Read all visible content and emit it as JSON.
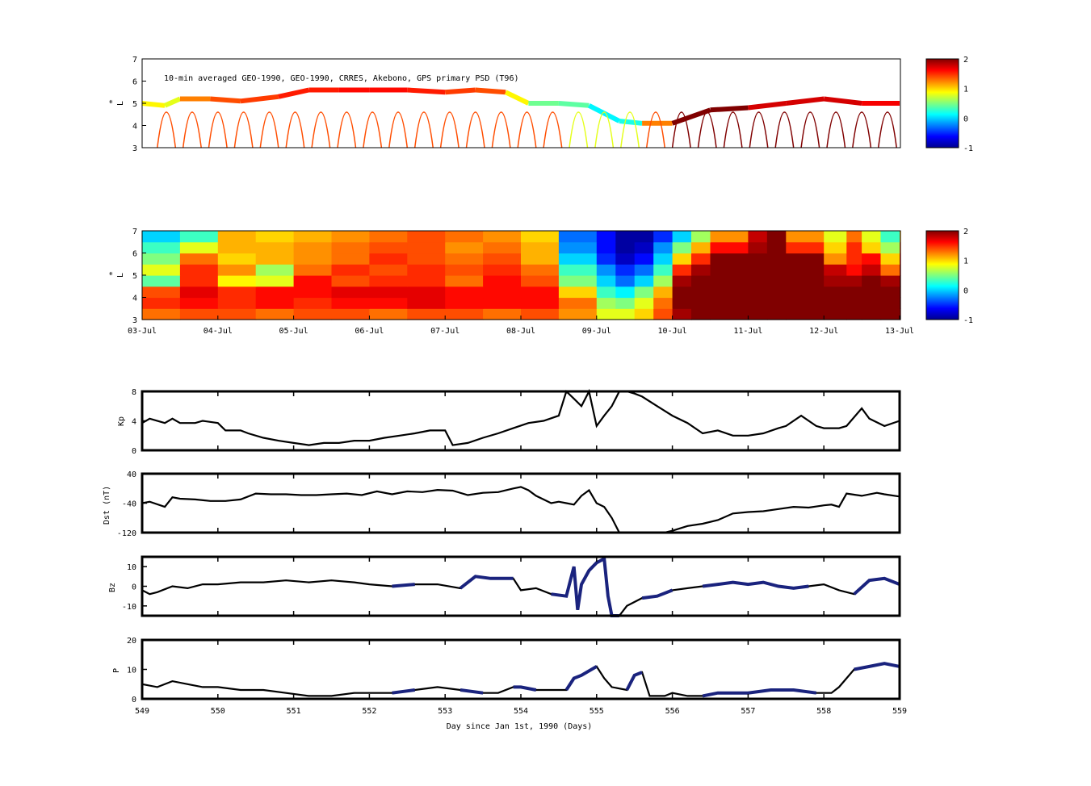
{
  "chart_data": [
    {
      "type": "heatmap",
      "title": "10-min averaged GEO-1990, GEO-1990, CRRES, Akebono, GPS  primary PSD (T96)",
      "ylabel": "L",
      "ylabel_sup": "*",
      "ylim": [
        3,
        7
      ],
      "yticks": [
        "3",
        "4",
        "5",
        "6",
        "7"
      ],
      "clim": [
        -1,
        2
      ],
      "cticks": [
        "-1",
        "0",
        "1",
        "2"
      ],
      "description_levels": {
        "geo_orbit_L": [
          [
            549.0,
            5.0,
            1.2
          ],
          [
            549.3,
            4.9,
            0.6
          ],
          [
            549.5,
            5.2,
            1.0
          ],
          [
            549.9,
            5.2,
            1.5
          ],
          [
            550.3,
            5.1,
            1.3
          ],
          [
            550.8,
            5.3,
            1.6
          ],
          [
            551.2,
            5.6,
            1.5
          ],
          [
            551.6,
            5.6,
            1.6
          ],
          [
            552.0,
            5.6,
            1.6
          ],
          [
            552.5,
            5.6,
            1.6
          ],
          [
            553.0,
            5.5,
            1.5
          ],
          [
            553.4,
            5.6,
            1.4
          ],
          [
            553.8,
            5.5,
            1.4
          ],
          [
            554.1,
            5.0,
            0.4
          ],
          [
            554.5,
            5.0,
            0.5
          ],
          [
            554.9,
            4.9,
            0.3
          ],
          [
            555.3,
            4.2,
            -0.1
          ],
          [
            555.6,
            4.1,
            0.5
          ],
          [
            556.0,
            4.1,
            2.0
          ],
          [
            556.5,
            4.7,
            2.0
          ],
          [
            557.0,
            4.8,
            2.0
          ],
          [
            557.5,
            5.0,
            1.5
          ],
          [
            558.0,
            5.2,
            2.0
          ],
          [
            558.5,
            5.0,
            1.5
          ],
          [
            559.0,
            5.0,
            1.8
          ]
        ]
      }
    },
    {
      "type": "heatmap",
      "ylabel": "L",
      "ylabel_sup": "*",
      "ylim": [
        3,
        7
      ],
      "yticks": [
        "3",
        "4",
        "5",
        "6",
        "7"
      ],
      "clim": [
        -1,
        2
      ],
      "cticks": [
        "-1",
        "0",
        "1",
        "2"
      ],
      "xtick_labels": [
        "03-Jul",
        "04-Jul",
        "05-Jul",
        "06-Jul",
        "07-Jul",
        "08-Jul",
        "09-Jul",
        "10-Jul",
        "11-Jul",
        "12-Jul",
        "13-Jul"
      ],
      "x": [
        549.0,
        549.5,
        550.0,
        550.5,
        551.0,
        551.5,
        552.0,
        552.5,
        553.0,
        553.5,
        554.0,
        554.5,
        555.0,
        555.25,
        555.5,
        555.75,
        556.0,
        556.25,
        556.5,
        557.0,
        557.25,
        557.5,
        558.0,
        558.3,
        558.5,
        558.75,
        559.0
      ],
      "y": [
        3.25,
        3.75,
        4.25,
        4.75,
        5.25,
        5.75,
        6.25,
        6.75
      ],
      "z": [
        [
          1.3,
          1.4,
          1.4,
          1.3,
          1.4,
          1.4,
          1.3,
          1.4,
          1.4,
          1.3,
          1.4,
          1.2,
          0.8,
          0.8,
          1.0,
          1.4,
          1.9,
          2.0,
          2.0,
          2.0,
          2.0,
          2.0,
          2.0,
          2.0,
          2.0,
          2.0,
          1.9
        ],
        [
          1.5,
          1.6,
          1.5,
          1.6,
          1.5,
          1.6,
          1.6,
          1.7,
          1.6,
          1.6,
          1.6,
          1.3,
          0.6,
          0.5,
          0.8,
          1.3,
          2.0,
          2.0,
          2.0,
          2.0,
          2.0,
          2.0,
          2.0,
          2.0,
          2.0,
          2.0,
          2.0
        ],
        [
          1.4,
          1.7,
          1.5,
          1.6,
          1.6,
          1.7,
          1.7,
          1.7,
          1.6,
          1.6,
          1.6,
          1.0,
          0.3,
          0.1,
          0.5,
          1.1,
          2.0,
          2.0,
          2.0,
          2.0,
          2.0,
          2.0,
          2.0,
          2.0,
          2.0,
          2.0,
          2.0
        ],
        [
          0.4,
          1.5,
          0.9,
          0.8,
          1.6,
          1.4,
          1.5,
          1.5,
          1.3,
          1.6,
          1.4,
          0.5,
          0.0,
          -0.3,
          0.0,
          0.6,
          1.9,
          2.0,
          2.0,
          2.0,
          2.0,
          2.0,
          1.9,
          1.9,
          2.0,
          1.9,
          2.0
        ],
        [
          0.8,
          1.5,
          1.2,
          0.6,
          1.3,
          1.5,
          1.4,
          1.5,
          1.4,
          1.5,
          1.3,
          0.3,
          -0.2,
          -0.5,
          -0.3,
          0.3,
          1.5,
          1.9,
          2.0,
          2.0,
          2.0,
          2.0,
          1.8,
          1.6,
          1.8,
          1.3,
          1.8
        ],
        [
          0.5,
          1.3,
          1.0,
          1.1,
          1.2,
          1.3,
          1.5,
          1.4,
          1.3,
          1.4,
          1.1,
          0.0,
          -0.5,
          -0.8,
          -0.6,
          0.0,
          1.0,
          1.5,
          2.0,
          2.0,
          2.0,
          2.0,
          1.2,
          1.5,
          1.6,
          1.0,
          1.6
        ],
        [
          0.3,
          0.8,
          1.1,
          1.1,
          1.2,
          1.3,
          1.4,
          1.4,
          1.2,
          1.3,
          1.1,
          -0.2,
          -0.6,
          -0.9,
          -0.8,
          -0.2,
          0.5,
          1.1,
          1.6,
          1.9,
          2.0,
          1.5,
          1.0,
          1.5,
          1.0,
          0.6,
          1.4
        ],
        [
          0.0,
          0.3,
          1.1,
          1.0,
          1.1,
          1.2,
          1.3,
          1.4,
          1.3,
          1.2,
          1.0,
          -0.3,
          -0.6,
          -0.9,
          -0.9,
          -0.5,
          0.0,
          0.6,
          1.2,
          1.8,
          2.0,
          1.2,
          0.8,
          1.3,
          0.8,
          0.3,
          1.1
        ]
      ]
    },
    {
      "type": "line",
      "ylabel": "Kp",
      "ylim": [
        0,
        8
      ],
      "yticks": [
        "0",
        "4",
        "8"
      ],
      "x": [
        549.0,
        549.1,
        549.3,
        549.4,
        549.5,
        549.7,
        549.8,
        550.0,
        550.1,
        550.3,
        550.4,
        550.6,
        550.8,
        551.0,
        551.2,
        551.4,
        551.6,
        551.8,
        552.0,
        552.2,
        552.4,
        552.6,
        552.8,
        553.0,
        553.1,
        553.3,
        553.5,
        553.7,
        553.9,
        554.1,
        554.3,
        554.5,
        554.6,
        554.7,
        554.8,
        554.9,
        555.0,
        555.1,
        555.2,
        555.3,
        555.4,
        555.5,
        555.6,
        555.8,
        556.0,
        556.2,
        556.4,
        556.6,
        556.8,
        557.0,
        557.2,
        557.4,
        557.5,
        557.7,
        557.9,
        558.0,
        558.2,
        558.3,
        558.5,
        558.6,
        558.8,
        559.0
      ],
      "y": [
        3.7,
        4.3,
        3.7,
        4.3,
        3.7,
        3.7,
        4.0,
        3.7,
        2.7,
        2.7,
        2.3,
        1.7,
        1.3,
        1.0,
        0.7,
        1.0,
        1.0,
        1.3,
        1.3,
        1.7,
        2.0,
        2.3,
        2.7,
        2.7,
        0.7,
        1.0,
        1.7,
        2.3,
        3.0,
        3.7,
        4.0,
        4.7,
        8.0,
        7.0,
        6.0,
        8.0,
        3.3,
        4.7,
        6.0,
        8.0,
        8.0,
        7.7,
        7.3,
        6.0,
        4.7,
        3.7,
        2.3,
        2.7,
        2.0,
        2.0,
        2.3,
        3.0,
        3.3,
        4.7,
        3.3,
        3.0,
        3.0,
        3.3,
        5.7,
        4.3,
        3.3,
        4.0
      ],
      "series": [
        {
          "values": "y"
        }
      ]
    },
    {
      "type": "line",
      "ylabel": "Dst (nT)",
      "ylim": [
        -120,
        40
      ],
      "yticks": [
        "-120",
        "-40",
        "40"
      ],
      "x": [
        549.0,
        549.1,
        549.3,
        549.4,
        549.5,
        549.7,
        549.9,
        550.1,
        550.3,
        550.5,
        550.7,
        550.9,
        551.1,
        551.3,
        551.5,
        551.7,
        551.9,
        552.1,
        552.3,
        552.5,
        552.7,
        552.9,
        553.1,
        553.3,
        553.5,
        553.7,
        553.9,
        554.0,
        554.1,
        554.2,
        554.3,
        554.4,
        554.5,
        554.6,
        554.7,
        554.8,
        554.9,
        555.0,
        555.1,
        555.2,
        555.3,
        555.4,
        555.6,
        555.8,
        555.9,
        556.0,
        556.2,
        556.4,
        556.6,
        556.8,
        557.0,
        557.2,
        557.4,
        557.6,
        557.8,
        558.0,
        558.1,
        558.2,
        558.3,
        558.5,
        558.7,
        558.8,
        559.0
      ],
      "y": [
        -40,
        -36,
        -50,
        -24,
        -28,
        -30,
        -34,
        -34,
        -30,
        -14,
        -16,
        -16,
        -18,
        -18,
        -16,
        -14,
        -18,
        -8,
        -16,
        -8,
        -10,
        -4,
        -6,
        -18,
        -12,
        -10,
        0,
        4,
        -5,
        -20,
        -30,
        -40,
        -36,
        -40,
        -44,
        -20,
        -5,
        -40,
        -50,
        -80,
        -130,
        -130,
        -130,
        -130,
        -125,
        -115,
        -102,
        -96,
        -86,
        -68,
        -64,
        -62,
        -56,
        -50,
        -52,
        -46,
        -44,
        -50,
        -14,
        -20,
        -12,
        -16,
        -22
      ],
      "series": [
        {
          "values": "y"
        }
      ]
    },
    {
      "type": "line",
      "ylabel": "Bz",
      "ylim": [
        -15,
        15
      ],
      "yticks": [
        "-10",
        "0",
        "10"
      ],
      "x": [
        549.0,
        549.1,
        549.2,
        549.4,
        549.6,
        549.8,
        550.0,
        550.3,
        550.6,
        550.9,
        551.2,
        551.5,
        551.8,
        552.0,
        552.3,
        552.6,
        552.9,
        553.2,
        553.4,
        553.6,
        553.9,
        554.0,
        554.2,
        554.4,
        554.6,
        554.7,
        554.75,
        554.8,
        554.9,
        555.0,
        555.1,
        555.15,
        555.2,
        555.3,
        555.4,
        555.6,
        555.8,
        556.0,
        556.2,
        556.4,
        556.6,
        556.8,
        557.0,
        557.2,
        557.4,
        557.6,
        557.8,
        558.0,
        558.2,
        558.4,
        558.6,
        558.8,
        559.0
      ],
      "y": [
        -2,
        -4,
        -3,
        0,
        -1,
        1,
        1,
        2,
        2,
        3,
        2,
        3,
        2,
        1,
        0,
        1,
        1,
        -1,
        5,
        4,
        4,
        -2,
        -1,
        -4,
        -5,
        10,
        -12,
        1,
        8,
        12,
        14,
        -5,
        -16,
        -16,
        -10,
        -6,
        -5,
        -2,
        -1,
        0,
        1,
        2,
        1,
        2,
        0,
        -1,
        0,
        1,
        -2,
        -4,
        3,
        4,
        1
      ],
      "series": [
        {
          "values": "y"
        }
      ]
    },
    {
      "type": "line",
      "ylabel": "P",
      "ylim": [
        0,
        20
      ],
      "yticks": [
        "0",
        "10",
        "20"
      ],
      "xlabel": "Day since Jan 1st, 1990 (Days)",
      "xtick_labels": [
        "549",
        "550",
        "551",
        "552",
        "553",
        "554",
        "555",
        "556",
        "557",
        "558",
        "559"
      ],
      "x": [
        549.0,
        549.2,
        549.4,
        549.6,
        549.8,
        550.0,
        550.3,
        550.6,
        550.9,
        551.2,
        551.5,
        551.8,
        552.0,
        552.3,
        552.6,
        552.9,
        553.2,
        553.5,
        553.7,
        553.9,
        554.0,
        554.2,
        554.4,
        554.6,
        554.7,
        554.8,
        555.0,
        555.1,
        555.2,
        555.4,
        555.5,
        555.6,
        555.7,
        555.9,
        556.0,
        556.2,
        556.4,
        556.6,
        556.8,
        557.0,
        557.3,
        557.6,
        557.9,
        558.1,
        558.2,
        558.4,
        558.6,
        558.8,
        559.0
      ],
      "y": [
        5,
        4,
        6,
        5,
        4,
        4,
        3,
        3,
        2,
        1,
        1,
        2,
        2,
        2,
        3,
        4,
        3,
        2,
        2,
        4,
        4,
        3,
        3,
        3,
        7,
        8,
        11,
        7,
        4,
        3,
        8,
        9,
        1,
        1,
        2,
        1,
        1,
        2,
        2,
        2,
        3,
        3,
        2,
        2,
        4,
        10,
        11,
        12,
        11
      ],
      "series": [
        {
          "values": "y"
        }
      ]
    }
  ],
  "colors": {
    "line": "#000000",
    "blue_segments": "#1a237e",
    "frame": "#000000"
  }
}
